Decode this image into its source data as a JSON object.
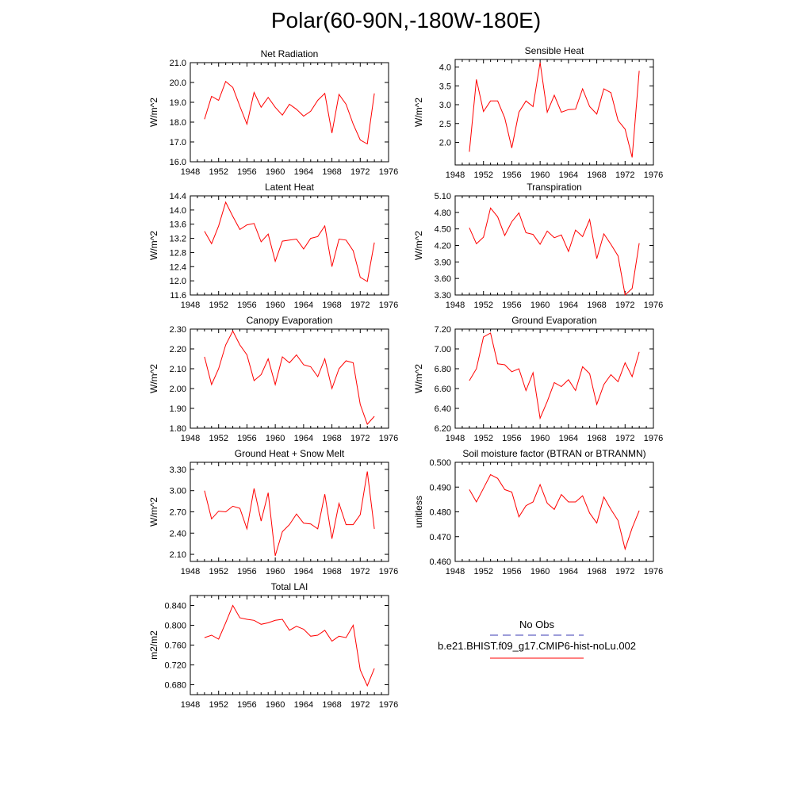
{
  "title": "Polar(60-90N,-180W-180E)",
  "colors": {
    "series": "#ff0000",
    "obs": "#3b3bb3",
    "axis": "#000000"
  },
  "chart_data": [
    {
      "type": "line",
      "title": "Net Radiation",
      "ylabel": "W/m^2",
      "xlim": [
        1948,
        1976
      ],
      "ylim": [
        16.0,
        21.0
      ],
      "xticks": [
        "1948",
        "1952",
        "1956",
        "1960",
        "1964",
        "1968",
        "1972",
        "1976"
      ],
      "yticks": [
        "16.0",
        "17.0",
        "18.0",
        "19.0",
        "20.0",
        "21.0"
      ],
      "x": [
        1950,
        1951,
        1952,
        1953,
        1954,
        1955,
        1956,
        1957,
        1958,
        1959,
        1960,
        1961,
        1962,
        1963,
        1964,
        1965,
        1966,
        1967,
        1968,
        1969,
        1970,
        1971,
        1972,
        1973,
        1974
      ],
      "series": [
        {
          "name": "b.e21.BHIST.f09_g17.CMIP6-hist-noLu.002",
          "values": [
            18.15,
            19.3,
            19.1,
            20.05,
            19.75,
            18.8,
            17.9,
            19.5,
            18.75,
            19.25,
            18.75,
            18.35,
            18.9,
            18.65,
            18.3,
            18.55,
            19.1,
            19.45,
            17.45,
            19.4,
            18.9,
            17.9,
            17.1,
            16.9,
            19.45
          ]
        }
      ]
    },
    {
      "type": "line",
      "title": "Sensible Heat",
      "ylabel": "W/m^2",
      "xlim": [
        1948,
        1976
      ],
      "ylim": [
        1.4,
        4.2
      ],
      "xticks": [
        "1948",
        "1952",
        "1956",
        "1960",
        "1964",
        "1968",
        "1972",
        "1976"
      ],
      "yticks": [
        "2.0",
        "2.5",
        "3.0",
        "3.5",
        "4.0"
      ],
      "x": [
        1950,
        1951,
        1952,
        1953,
        1954,
        1955,
        1956,
        1957,
        1958,
        1959,
        1960,
        1961,
        1962,
        1963,
        1964,
        1965,
        1966,
        1967,
        1968,
        1969,
        1970,
        1971,
        1972,
        1973,
        1974
      ],
      "series": [
        {
          "name": "b.e21.BHIST.f09_g17.CMIP6-hist-noLu.002",
          "values": [
            1.75,
            3.67,
            2.82,
            3.1,
            3.1,
            2.65,
            1.85,
            2.8,
            3.1,
            2.95,
            4.12,
            2.8,
            3.25,
            2.8,
            2.87,
            2.88,
            3.42,
            2.95,
            2.75,
            3.42,
            3.32,
            2.58,
            2.35,
            1.6,
            3.9
          ]
        }
      ]
    },
    {
      "type": "line",
      "title": "Latent Heat",
      "ylabel": "W/m^2",
      "xlim": [
        1948,
        1976
      ],
      "ylim": [
        11.6,
        14.4
      ],
      "xticks": [
        "1948",
        "1952",
        "1956",
        "1960",
        "1964",
        "1968",
        "1972",
        "1976"
      ],
      "yticks": [
        "11.6",
        "12.0",
        "12.4",
        "12.8",
        "13.2",
        "13.6",
        "14.0",
        "14.4"
      ],
      "x": [
        1950,
        1951,
        1952,
        1953,
        1954,
        1955,
        1956,
        1957,
        1958,
        1959,
        1960,
        1961,
        1962,
        1963,
        1964,
        1965,
        1966,
        1967,
        1968,
        1969,
        1970,
        1971,
        1972,
        1973,
        1974
      ],
      "series": [
        {
          "name": "b.e21.BHIST.f09_g17.CMIP6-hist-noLu.002",
          "values": [
            13.4,
            13.05,
            13.55,
            14.22,
            13.82,
            13.45,
            13.58,
            13.62,
            13.1,
            13.32,
            12.55,
            13.12,
            13.15,
            13.18,
            12.9,
            13.2,
            13.25,
            13.55,
            12.4,
            13.18,
            13.15,
            12.85,
            12.1,
            11.98,
            13.08
          ]
        }
      ]
    },
    {
      "type": "line",
      "title": "Transpiration",
      "ylabel": "W/m^2",
      "xlim": [
        1948,
        1976
      ],
      "ylim": [
        3.3,
        5.1
      ],
      "xticks": [
        "1948",
        "1952",
        "1956",
        "1960",
        "1964",
        "1968",
        "1972",
        "1976"
      ],
      "yticks": [
        "3.30",
        "3.60",
        "3.90",
        "4.20",
        "4.50",
        "4.80",
        "5.10"
      ],
      "x": [
        1950,
        1951,
        1952,
        1953,
        1954,
        1955,
        1956,
        1957,
        1958,
        1959,
        1960,
        1961,
        1962,
        1963,
        1964,
        1965,
        1966,
        1967,
        1968,
        1969,
        1970,
        1971,
        1972,
        1973,
        1974
      ],
      "series": [
        {
          "name": "b.e21.BHIST.f09_g17.CMIP6-hist-noLu.002",
          "values": [
            4.52,
            4.23,
            4.35,
            4.88,
            4.72,
            4.38,
            4.63,
            4.79,
            4.43,
            4.4,
            4.22,
            4.46,
            4.34,
            4.39,
            4.09,
            4.48,
            4.36,
            4.67,
            3.96,
            4.41,
            4.22,
            4.01,
            3.3,
            3.42,
            4.24
          ]
        }
      ]
    },
    {
      "type": "line",
      "title": "Canopy Evaporation",
      "ylabel": "W/m^2",
      "xlim": [
        1948,
        1976
      ],
      "ylim": [
        1.8,
        2.3
      ],
      "xticks": [
        "1948",
        "1952",
        "1956",
        "1960",
        "1964",
        "1968",
        "1972",
        "1976"
      ],
      "yticks": [
        "1.80",
        "1.90",
        "2.00",
        "2.10",
        "2.20",
        "2.30"
      ],
      "x": [
        1950,
        1951,
        1952,
        1953,
        1954,
        1955,
        1956,
        1957,
        1958,
        1959,
        1960,
        1961,
        1962,
        1963,
        1964,
        1965,
        1966,
        1967,
        1968,
        1969,
        1970,
        1971,
        1972,
        1973,
        1974
      ],
      "series": [
        {
          "name": "b.e21.BHIST.f09_g17.CMIP6-hist-noLu.002",
          "values": [
            2.16,
            2.02,
            2.1,
            2.22,
            2.29,
            2.22,
            2.17,
            2.04,
            2.07,
            2.15,
            2.02,
            2.16,
            2.13,
            2.17,
            2.12,
            2.11,
            2.06,
            2.15,
            2.0,
            2.1,
            2.14,
            2.13,
            1.92,
            1.82,
            1.86
          ]
        }
      ]
    },
    {
      "type": "line",
      "title": "Ground Evaporation",
      "ylabel": "W/m^2",
      "xlim": [
        1948,
        1976
      ],
      "ylim": [
        6.2,
        7.2
      ],
      "xticks": [
        "1948",
        "1952",
        "1956",
        "1960",
        "1964",
        "1968",
        "1972",
        "1976"
      ],
      "yticks": [
        "6.20",
        "6.40",
        "6.60",
        "6.80",
        "7.00",
        "7.20"
      ],
      "x": [
        1950,
        1951,
        1952,
        1953,
        1954,
        1955,
        1956,
        1957,
        1958,
        1959,
        1960,
        1961,
        1962,
        1963,
        1964,
        1965,
        1966,
        1967,
        1968,
        1969,
        1970,
        1971,
        1972,
        1973,
        1974
      ],
      "series": [
        {
          "name": "b.e21.BHIST.f09_g17.CMIP6-hist-noLu.002",
          "values": [
            6.68,
            6.8,
            7.12,
            7.16,
            6.85,
            6.84,
            6.77,
            6.8,
            6.58,
            6.76,
            6.3,
            6.47,
            6.66,
            6.62,
            6.69,
            6.58,
            6.82,
            6.75,
            6.44,
            6.64,
            6.74,
            6.67,
            6.86,
            6.72,
            6.97
          ]
        }
      ]
    },
    {
      "type": "line",
      "title": "Ground Heat + Snow Melt",
      "ylabel": "W/m^2",
      "xlim": [
        1948,
        1976
      ],
      "ylim": [
        2.0,
        3.4
      ],
      "xticks": [
        "1948",
        "1952",
        "1956",
        "1960",
        "1964",
        "1968",
        "1972",
        "1976"
      ],
      "yticks": [
        "2.10",
        "2.40",
        "2.70",
        "3.00",
        "3.30"
      ],
      "x": [
        1950,
        1951,
        1952,
        1953,
        1954,
        1955,
        1956,
        1957,
        1958,
        1959,
        1960,
        1961,
        1962,
        1963,
        1964,
        1965,
        1966,
        1967,
        1968,
        1969,
        1970,
        1971,
        1972,
        1973,
        1974
      ],
      "series": [
        {
          "name": "b.e21.BHIST.f09_g17.CMIP6-hist-noLu.002",
          "values": [
            3.0,
            2.6,
            2.71,
            2.7,
            2.78,
            2.75,
            2.46,
            3.03,
            2.57,
            2.97,
            2.08,
            2.42,
            2.52,
            2.67,
            2.54,
            2.53,
            2.46,
            2.95,
            2.32,
            2.82,
            2.52,
            2.52,
            2.66,
            3.27,
            2.46
          ]
        }
      ]
    },
    {
      "type": "line",
      "title": "Soil moisture factor (BTRAN or BTRANMN)",
      "ylabel": "unitless",
      "xlim": [
        1948,
        1976
      ],
      "ylim": [
        0.46,
        0.5
      ],
      "xticks": [
        "1948",
        "1952",
        "1956",
        "1960",
        "1964",
        "1968",
        "1972",
        "1976"
      ],
      "yticks": [
        "0.460",
        "0.470",
        "0.480",
        "0.490",
        "0.500"
      ],
      "x": [
        1950,
        1951,
        1952,
        1953,
        1954,
        1955,
        1956,
        1957,
        1958,
        1959,
        1960,
        1961,
        1962,
        1963,
        1964,
        1965,
        1966,
        1967,
        1968,
        1969,
        1970,
        1971,
        1972,
        1973,
        1974
      ],
      "series": [
        {
          "name": "b.e21.BHIST.f09_g17.CMIP6-hist-noLu.002",
          "values": [
            0.489,
            0.484,
            0.4895,
            0.495,
            0.4935,
            0.489,
            0.488,
            0.478,
            0.4825,
            0.484,
            0.491,
            0.4835,
            0.481,
            0.487,
            0.484,
            0.484,
            0.4865,
            0.4795,
            0.4755,
            0.486,
            0.481,
            0.4765,
            0.465,
            0.4735,
            0.4805
          ]
        }
      ]
    },
    {
      "type": "line",
      "title": "Total LAI",
      "ylabel": "m2/m2",
      "xlim": [
        1948,
        1976
      ],
      "ylim": [
        0.66,
        0.86
      ],
      "xticks": [
        "1948",
        "1952",
        "1956",
        "1960",
        "1964",
        "1968",
        "1972",
        "1976"
      ],
      "yticks": [
        "0.680",
        "0.720",
        "0.760",
        "0.800",
        "0.840"
      ],
      "x": [
        1950,
        1951,
        1952,
        1953,
        1954,
        1955,
        1956,
        1957,
        1958,
        1959,
        1960,
        1961,
        1962,
        1963,
        1964,
        1965,
        1966,
        1967,
        1968,
        1969,
        1970,
        1971,
        1972,
        1973,
        1974
      ],
      "series": [
        {
          "name": "b.e21.BHIST.f09_g17.CMIP6-hist-noLu.002",
          "values": [
            0.775,
            0.78,
            0.772,
            0.805,
            0.84,
            0.815,
            0.812,
            0.81,
            0.802,
            0.805,
            0.81,
            0.812,
            0.79,
            0.798,
            0.792,
            0.778,
            0.78,
            0.79,
            0.768,
            0.778,
            0.775,
            0.8,
            0.71,
            0.678,
            0.713
          ]
        }
      ]
    }
  ],
  "legend": {
    "obs_label": "No Obs",
    "model_label": "b.e21.BHIST.f09_g17.CMIP6-hist-noLu.002"
  }
}
